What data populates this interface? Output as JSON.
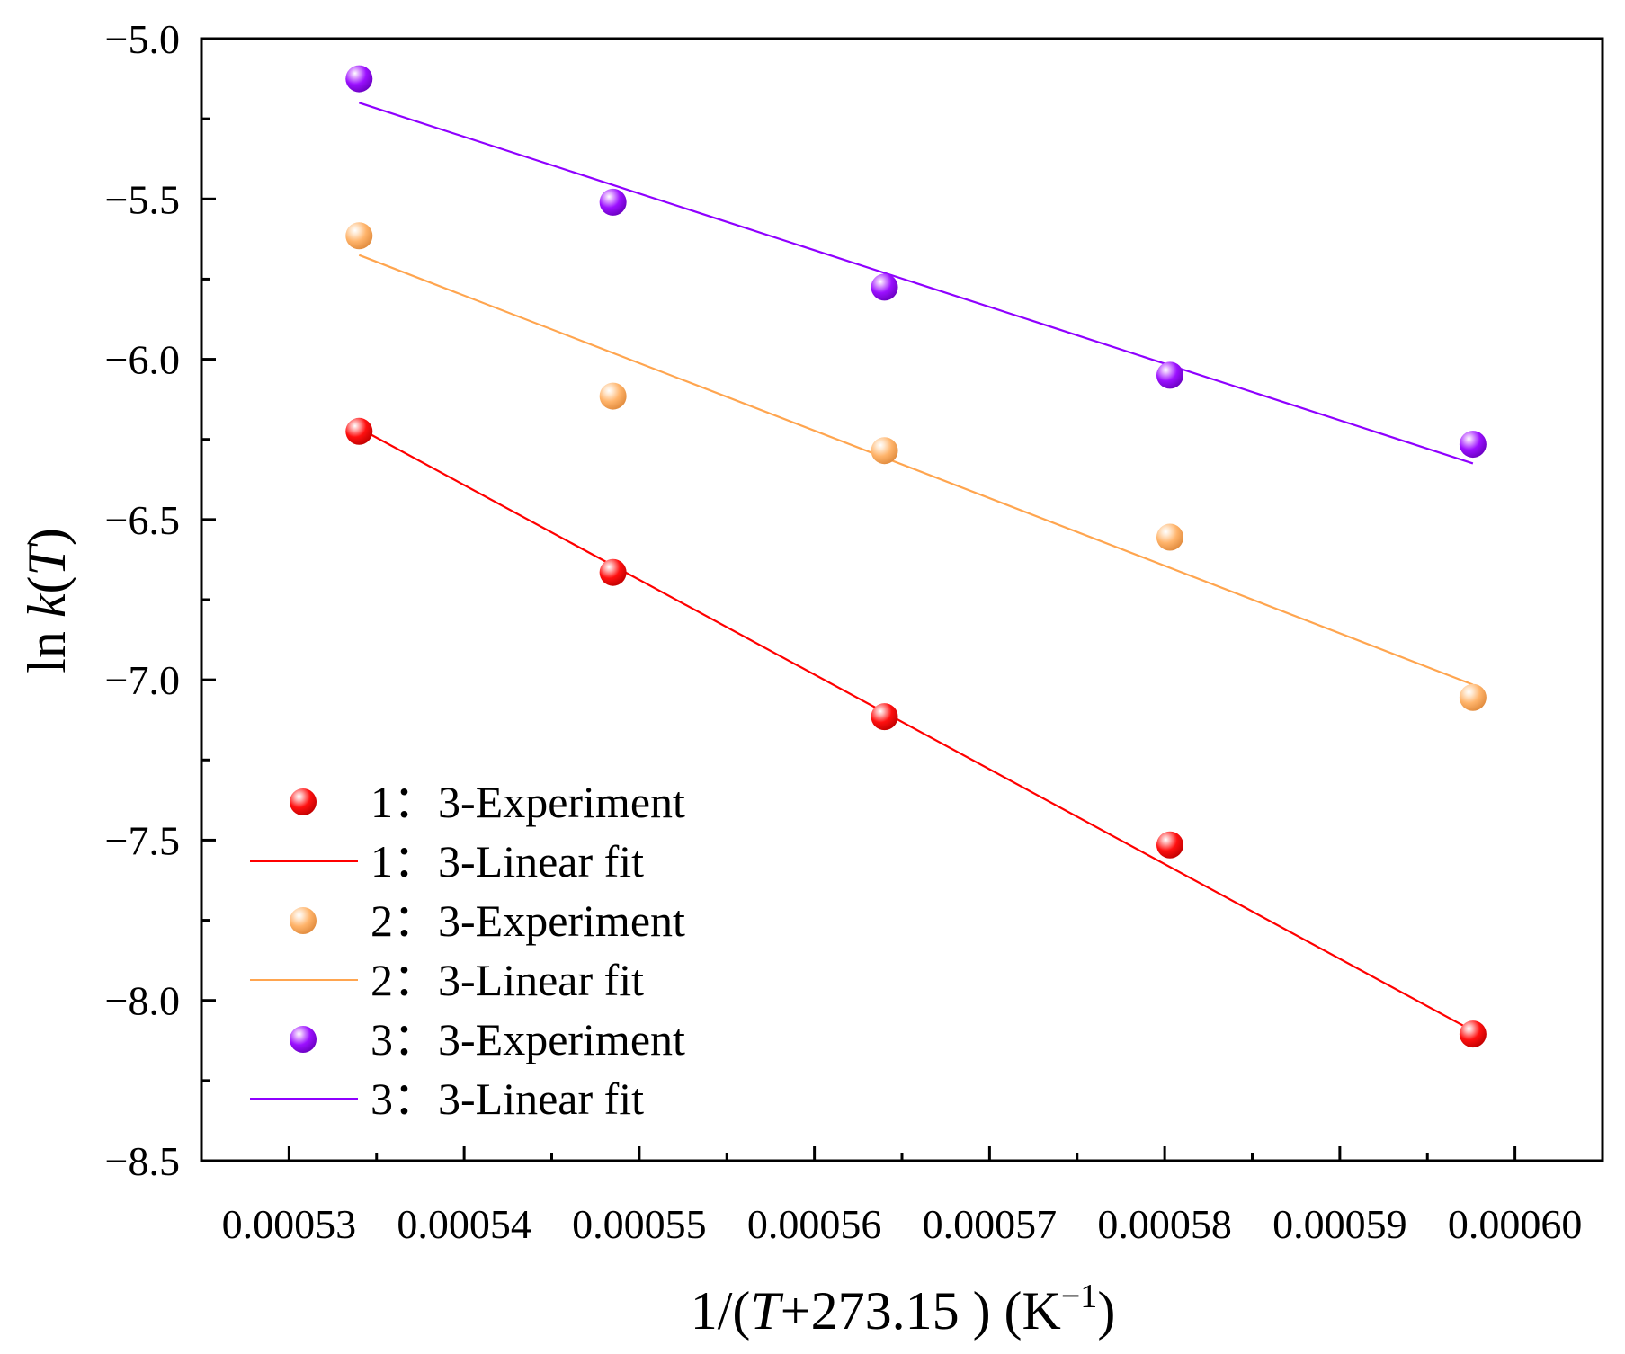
{
  "chart_data": {
    "type": "scatter",
    "title": "",
    "xlabel": {
      "prefix": "1/(",
      "var": "T",
      "suffix": "+273.15 ) (K",
      "sup": "−1",
      "close": ")"
    },
    "ylabel": {
      "prefix": "ln ",
      "var": "k",
      "open": "(",
      "var2": "T",
      "close": ")"
    },
    "xlim": [
      0.000525,
      0.000605
    ],
    "ylim": [
      -8.5,
      -5.0
    ],
    "xticks": [
      0.00053,
      0.00054,
      0.00055,
      0.00056,
      0.00057,
      0.00058,
      0.00059,
      0.0006
    ],
    "xtick_labels": [
      "0.00053",
      "0.00054",
      "0.00055",
      "0.00056",
      "0.00057",
      "0.00058",
      "0.00059",
      "0.00060"
    ],
    "yticks": [
      -5.0,
      -5.5,
      -6.0,
      -6.5,
      -7.0,
      -7.5,
      -8.0,
      -8.5
    ],
    "ytick_labels": [
      "−5.0",
      "−5.5",
      "−6.0",
      "−6.5",
      "−7.0",
      "−7.5",
      "−8.0",
      "−8.5"
    ],
    "legend_position": "lower-left",
    "series": [
      {
        "name": "1：3-Experiment",
        "kind": "points",
        "color": "#ff0000",
        "x": [
          0.000534,
          0.0005485,
          0.000564,
          0.0005803,
          0.0005976
        ],
        "y": [
          -6.225,
          -6.665,
          -7.115,
          -7.515,
          -8.105
        ]
      },
      {
        "name": "1：3-Linear fit",
        "kind": "line",
        "color": "#ff0000",
        "x": [
          0.000534,
          0.0005976
        ],
        "y": [
          -6.215,
          -8.095
        ]
      },
      {
        "name": "2：3-Experiment",
        "kind": "points",
        "color": "#ffb06b",
        "x": [
          0.000534,
          0.0005485,
          0.000564,
          0.0005803,
          0.0005976
        ],
        "y": [
          -5.615,
          -6.115,
          -6.285,
          -6.555,
          -7.055
        ]
      },
      {
        "name": "2：3-Linear fit",
        "kind": "line",
        "color": "#ffa54f",
        "x": [
          0.000534,
          0.0005976
        ],
        "y": [
          -5.675,
          -7.015
        ]
      },
      {
        "name": "3：3-Experiment",
        "kind": "points",
        "color": "#9b00ff",
        "x": [
          0.000534,
          0.0005485,
          0.000564,
          0.0005803,
          0.0005976
        ],
        "y": [
          -5.125,
          -5.51,
          -5.775,
          -6.05,
          -6.265
        ]
      },
      {
        "name": "3：3-Linear fit",
        "kind": "line",
        "color": "#8f00ff",
        "x": [
          0.000534,
          0.0005976
        ],
        "y": [
          -5.2,
          -6.325
        ]
      }
    ]
  }
}
